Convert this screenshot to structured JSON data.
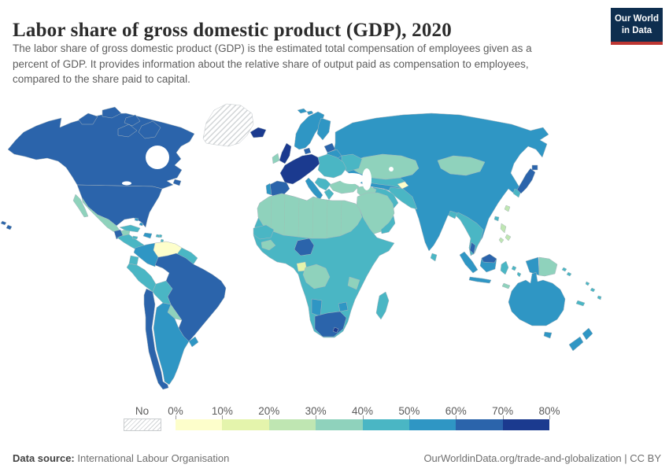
{
  "header": {
    "title": "Labor share of gross domestic product (GDP), 2020",
    "subtitle_lines": [
      "The labor share of gross domestic product (GDP) is the estimated total compensation of employees given as a",
      "percent of GDP. It provides information about the relative share of output paid as compensation to employees,",
      "compared to the share paid to capital."
    ]
  },
  "logo": {
    "line1": "Our World",
    "line2": "in Data",
    "bg": "#0e2e4f",
    "accent": "#bd3632"
  },
  "legend": {
    "no_data_label": "No data"
  },
  "footer": {
    "source_label": "Data source:",
    "source_value": " International Labour Organisation",
    "right_text": "OurWorldinData.org/trade-and-globalization | CC BY"
  },
  "chart_data": {
    "type": "choropleth",
    "title": "Labor share of gross domestic product (GDP)",
    "year": 2020,
    "unit": "% of GDP",
    "projection": "world map",
    "legend": {
      "no_data_label": "No data",
      "tick_labels": [
        "0%",
        "10%",
        "20%",
        "30%",
        "40%",
        "50%",
        "60%",
        "70%",
        "80%"
      ],
      "bins": [
        {
          "range": "0-10%",
          "color": "#fdfecb"
        },
        {
          "range": "10-20%",
          "color": "#e4f4ac"
        },
        {
          "range": "20-30%",
          "color": "#bfe6b2"
        },
        {
          "range": "30-40%",
          "color": "#8fd2bc"
        },
        {
          "range": "40-50%",
          "color": "#4ab6c4"
        },
        {
          "range": "50-60%",
          "color": "#2f96c4"
        },
        {
          "range": "60-70%",
          "color": "#2b64ab"
        },
        {
          "range": "70-80%",
          "color": "#1b3a8f"
        }
      ],
      "no_data_pattern": "gray diagonal hatch"
    },
    "regions": {
      "canada": "60-70%",
      "arctic-islands": "60-70%",
      "newfoundland": "60-70%",
      "united-states": "60-70%",
      "hawaii": "60-70%",
      "greenland": "no-data",
      "iceland": "70-80%",
      "svalbard": "50-60%",
      "mexico": "30-40%",
      "baja-california": "30-40%",
      "guatemala": "60-70%",
      "central-america": "40-50%",
      "panama-costa-rica": "60-70%",
      "cuba": "40-50%",
      "hispaniola": "50-60%",
      "jamaica": "40-50%",
      "puerto-rico": "40-50%",
      "bahamas": "50-60%",
      "lesser-antilles": "40-50%",
      "trinidad": "40-50%",
      "colombia": "50-60%",
      "venezuela": "0-10%",
      "guyanas": "40-50%",
      "brazil": "60-70%",
      "ecuador": "40-50%",
      "peru": "40-50%",
      "bolivia": "40-50%",
      "paraguay": "30-40%",
      "argentina": "50-60%",
      "uruguay": "50-60%",
      "chile": "60-70%",
      "united-kingdom": "70-80%",
      "ireland": "30-40%",
      "norway-sweden": "50-60%",
      "finland": "50-60%",
      "denmark": "60-70%",
      "baltics": "60-70%",
      "belarus": "50-60%",
      "western-europe": "70-80%",
      "spain": "60-70%",
      "portugal": "50-60%",
      "italy": "50-60%",
      "sicily": "40-50%",
      "eastern-europe": "40-50%",
      "balkans": "40-50%",
      "greece": "40-50%",
      "ukraine": "40-50%",
      "russia-china-india": "50-60%",
      "kazakhstan": "30-40%",
      "central-asia-south": "40-50%",
      "tajikistan": "0-10%",
      "mongolia": "30-40%",
      "afghanistan-pakistan": "40-50%",
      "iran": "40-50%",
      "levant-iraq": "30-40%",
      "turkey": "30-40%",
      "caucasus": "40-50%",
      "arabia": "30-40%",
      "yemen-oman": "40-50%",
      "north-africa-sahel": "30-40%",
      "senegal-mauritania": "40-50%",
      "guinea": "30-40%",
      "nigeria": "60-70%",
      "gabon": "10-20%",
      "congo-dr": "30-40%",
      "tanzania": "30-40%",
      "namibia": "50-60%",
      "zimbabwe": "50-60%",
      "south-africa": "60-70%",
      "lesotho": "70-80%",
      "madagascar": "40-50%",
      "indochina": "40-50%",
      "bangladesh": "40-50%",
      "sri-lanka": "40-50%",
      "south-korea": "40-50%",
      "japan": "60-70%",
      "hokkaido": "60-70%",
      "taiwan": "20-30%",
      "hainan": "40-50%",
      "philippines": "20-30%",
      "sumatra": "50-60%",
      "malay-peninsula": "60-70%",
      "borneo": "50-60%",
      "malaysia-borneo": "60-70%",
      "java": "50-60%",
      "sulawesi": "40-50%",
      "moluccas": "40-50%",
      "timor": "30-40%",
      "west-new-guinea": "50-60%",
      "papua-new-guinea": "30-40%",
      "solomons": "40-50%",
      "australia": "50-60%",
      "tasmania": "50-60%",
      "new-zealand": "50-60%",
      "new-caledonia": "40-50%",
      "pacific-islands": "40-50%"
    },
    "countries": {
      "United States": "60-70%",
      "Canada": "60-70%",
      "Greenland": "No data",
      "Mexico": "30-40%",
      "Guatemala": "60-70%",
      "Honduras": "40-50%",
      "Nicaragua": "40-50%",
      "Costa Rica": "60-70%",
      "Panama": "60-70%",
      "Cuba": "40-50%",
      "Dominican Republic": "50-60%",
      "Colombia": "50-60%",
      "Venezuela": "0-10%",
      "Guyana": "40-50%",
      "Ecuador": "40-50%",
      "Peru": "40-50%",
      "Bolivia": "40-50%",
      "Paraguay": "30-40%",
      "Brazil": "60-70%",
      "Chile": "60-70%",
      "Argentina": "50-60%",
      "Uruguay": "50-60%",
      "Iceland": "70-80%",
      "United Kingdom": "70-80%",
      "Ireland": "30-40%",
      "Norway": "50-60%",
      "Sweden": "50-60%",
      "Finland": "50-60%",
      "Denmark": "60-70%",
      "France": "70-80%",
      "Germany": "70-80%",
      "Netherlands": "70-80%",
      "Belgium": "70-80%",
      "Switzerland": "70-80%",
      "Austria": "70-80%",
      "Spain": "60-70%",
      "Portugal": "50-60%",
      "Italy": "50-60%",
      "Poland": "40-50%",
      "Czechia": "40-50%",
      "Hungary": "40-50%",
      "Romania": "40-50%",
      "Greece": "40-50%",
      "Ukraine": "40-50%",
      "Belarus": "50-60%",
      "Russia": "50-60%",
      "Turkey": "30-40%",
      "Kazakhstan": "30-40%",
      "Uzbekistan": "40-50%",
      "Turkmenistan": "40-50%",
      "Tajikistan": "0-10%",
      "Mongolia": "30-40%",
      "China": "50-60%",
      "Japan": "60-70%",
      "South Korea": "40-50%",
      "North Korea": "40-50%",
      "India": "50-60%",
      "Pakistan": "40-50%",
      "Afghanistan": "40-50%",
      "Iran": "40-50%",
      "Iraq": "30-40%",
      "Saudi Arabia": "30-40%",
      "Yemen": "40-50%",
      "Oman": "40-50%",
      "Egypt": "30-40%",
      "Algeria": "30-40%",
      "Libya": "30-40%",
      "Morocco": "30-40%",
      "Mali": "30-40%",
      "Niger": "30-40%",
      "Chad": "30-40%",
      "Sudan": "30-40%",
      "Senegal": "40-50%",
      "Guinea": "30-40%",
      "Ghana": "40-50%",
      "Nigeria": "60-70%",
      "Cameroon": "40-50%",
      "Gabon": "10-20%",
      "Democratic Republic of Congo": "30-40%",
      "Ethiopia": "40-50%",
      "Kenya": "40-50%",
      "Tanzania": "30-40%",
      "Angola": "40-50%",
      "Zambia": "30-40%",
      "Zimbabwe": "50-60%",
      "Namibia": "50-60%",
      "Botswana": "40-50%",
      "South Africa": "60-70%",
      "Lesotho": "70-80%",
      "Madagascar": "40-50%",
      "Myanmar": "40-50%",
      "Thailand": "40-50%",
      "Vietnam": "40-50%",
      "Cambodia": "40-50%",
      "Malaysia": "60-70%",
      "Indonesia": "50-60%",
      "Philippines": "20-30%",
      "Taiwan": "20-30%",
      "Sri Lanka": "40-50%",
      "Bangladesh": "40-50%",
      "Nepal": "50-60%",
      "Papua New Guinea": "30-40%",
      "Australia": "50-60%",
      "New Zealand": "50-60%"
    }
  }
}
